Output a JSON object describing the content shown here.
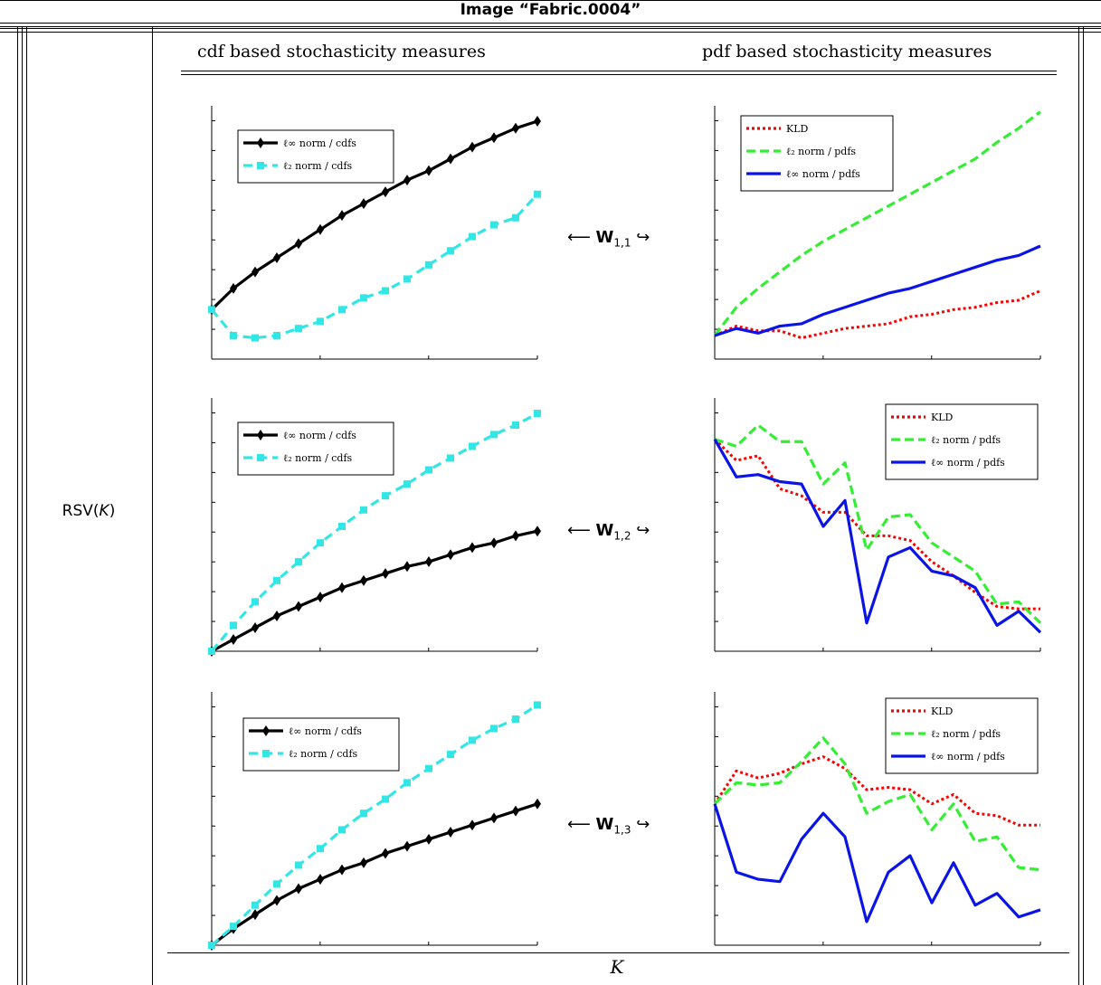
{
  "header": {
    "title": "Image “Fabric.0004”",
    "col_cdf": "cdf based stochasticity measures",
    "col_pdf": "pdf based stochasticity measures",
    "row_label": "RSV(K)",
    "row_label_plain": "RSV(",
    "row_label_var": "K",
    "row_label_close": ")",
    "x_label": "K"
  },
  "connectors": [
    {
      "prefix": "⟵",
      "symbol": "W",
      "sub": "1,1",
      "suffix": "↪"
    },
    {
      "prefix": "⟵",
      "symbol": "W",
      "sub": "1,2",
      "suffix": "↪"
    },
    {
      "prefix": "⟵",
      "symbol": "W",
      "sub": "1,3",
      "suffix": "↪"
    }
  ],
  "colors": {
    "linf_cdf": "#000000",
    "l2_cdf": "#33e6e6",
    "kld": "#ff0000",
    "l2_pdf": "#33ee33",
    "linf_pdf": "#0a14e6"
  },
  "chart_data": [
    {
      "type": "line",
      "id": "cdf-w11",
      "legend_position": "top-left",
      "x": [
        0,
        1,
        2,
        3,
        4,
        5,
        6,
        7,
        8,
        9,
        10,
        11,
        12,
        13,
        14,
        15
      ],
      "ylim": [
        0,
        1
      ],
      "series": [
        {
          "name": "ℓ∞ norm / cdfs",
          "style": "solid-diamond",
          "color_key": "linf_cdf",
          "values": [
            0.21,
            0.3,
            0.37,
            0.43,
            0.49,
            0.55,
            0.61,
            0.66,
            0.71,
            0.76,
            0.8,
            0.85,
            0.9,
            0.94,
            0.98,
            1.01
          ]
        },
        {
          "name": "ℓ₂ norm / cdfs",
          "style": "dashed-square",
          "color_key": "l2_cdf",
          "values": [
            0.21,
            0.1,
            0.09,
            0.1,
            0.13,
            0.16,
            0.21,
            0.26,
            0.29,
            0.34,
            0.4,
            0.46,
            0.52,
            0.57,
            0.6,
            0.7
          ]
        }
      ]
    },
    {
      "type": "line",
      "id": "pdf-w11",
      "legend_position": "top-left",
      "x": [
        0,
        1,
        2,
        3,
        4,
        5,
        6,
        7,
        8,
        9,
        10,
        11,
        12,
        13,
        14,
        15
      ],
      "ylim": [
        0,
        1
      ],
      "series": [
        {
          "name": "KLD",
          "style": "dotted",
          "color_key": "kld",
          "values": [
            0.1,
            0.14,
            0.12,
            0.12,
            0.09,
            0.11,
            0.13,
            0.14,
            0.15,
            0.18,
            0.19,
            0.21,
            0.22,
            0.24,
            0.25,
            0.29
          ]
        },
        {
          "name": "ℓ₂ norm / pdfs",
          "style": "dashed",
          "color_key": "l2_pdf",
          "values": [
            0.1,
            0.22,
            0.3,
            0.37,
            0.44,
            0.5,
            0.55,
            0.6,
            0.65,
            0.7,
            0.75,
            0.8,
            0.85,
            0.92,
            0.98,
            1.05
          ]
        },
        {
          "name": "ℓ∞ norm / pdfs",
          "style": "solid",
          "color_key": "linf_pdf",
          "values": [
            0.1,
            0.13,
            0.11,
            0.14,
            0.15,
            0.19,
            0.22,
            0.25,
            0.28,
            0.3,
            0.33,
            0.36,
            0.39,
            0.42,
            0.44,
            0.48
          ]
        }
      ]
    },
    {
      "type": "line",
      "id": "cdf-w12",
      "legend_position": "top-left",
      "x": [
        0,
        1,
        2,
        3,
        4,
        5,
        6,
        7,
        8,
        9,
        10,
        11,
        12,
        13,
        14,
        15
      ],
      "ylim": [
        0,
        1
      ],
      "series": [
        {
          "name": "ℓ∞ norm / cdfs",
          "style": "solid-diamond",
          "color_key": "linf_cdf",
          "values": [
            0.0,
            0.05,
            0.1,
            0.15,
            0.19,
            0.23,
            0.27,
            0.3,
            0.33,
            0.36,
            0.38,
            0.41,
            0.44,
            0.46,
            0.49,
            0.51
          ]
        },
        {
          "name": "ℓ₂ norm / cdfs",
          "style": "dashed-square",
          "color_key": "l2_cdf",
          "values": [
            0.0,
            0.11,
            0.21,
            0.3,
            0.38,
            0.46,
            0.53,
            0.6,
            0.66,
            0.71,
            0.77,
            0.82,
            0.87,
            0.92,
            0.96,
            1.01
          ]
        }
      ]
    },
    {
      "type": "line",
      "id": "pdf-w12",
      "legend_position": "top-right",
      "x": [
        0,
        1,
        2,
        3,
        4,
        5,
        6,
        7,
        8,
        9,
        10,
        11,
        12,
        13,
        14,
        15
      ],
      "ylim": [
        0,
        1
      ],
      "series": [
        {
          "name": "KLD",
          "style": "dotted",
          "color_key": "kld",
          "values": [
            0.9,
            0.81,
            0.83,
            0.69,
            0.66,
            0.59,
            0.59,
            0.49,
            0.49,
            0.47,
            0.38,
            0.32,
            0.25,
            0.19,
            0.18,
            0.18
          ]
        },
        {
          "name": "ℓ₂ norm / pdfs",
          "style": "dashed",
          "color_key": "l2_pdf",
          "values": [
            0.9,
            0.87,
            0.96,
            0.89,
            0.89,
            0.71,
            0.8,
            0.43,
            0.57,
            0.58,
            0.46,
            0.4,
            0.34,
            0.2,
            0.21,
            0.12
          ]
        },
        {
          "name": "ℓ∞ norm / pdfs",
          "style": "solid",
          "color_key": "linf_pdf",
          "values": [
            0.9,
            0.74,
            0.75,
            0.72,
            0.71,
            0.53,
            0.64,
            0.12,
            0.4,
            0.44,
            0.34,
            0.32,
            0.27,
            0.11,
            0.17,
            0.08
          ]
        }
      ]
    },
    {
      "type": "line",
      "id": "cdf-w13",
      "legend_position": "top-left",
      "x": [
        0,
        1,
        2,
        3,
        4,
        5,
        6,
        7,
        8,
        9,
        10,
        11,
        12,
        13,
        14,
        15
      ],
      "ylim": [
        0,
        1
      ],
      "series": [
        {
          "name": "ℓ∞ norm / cdfs",
          "style": "solid-diamond",
          "color_key": "linf_cdf",
          "values": [
            0.0,
            0.07,
            0.13,
            0.19,
            0.24,
            0.28,
            0.32,
            0.35,
            0.39,
            0.42,
            0.45,
            0.48,
            0.51,
            0.54,
            0.57,
            0.6
          ]
        },
        {
          "name": "ℓ₂ norm / cdfs",
          "style": "dashed-square",
          "color_key": "l2_cdf",
          "values": [
            0.0,
            0.08,
            0.17,
            0.26,
            0.34,
            0.41,
            0.49,
            0.56,
            0.62,
            0.69,
            0.75,
            0.81,
            0.87,
            0.92,
            0.96,
            1.02
          ]
        }
      ]
    },
    {
      "type": "line",
      "id": "pdf-w13",
      "legend_position": "top-right",
      "x": [
        0,
        1,
        2,
        3,
        4,
        5,
        6,
        7,
        8,
        9,
        10,
        11,
        12,
        13,
        14,
        15
      ],
      "ylim": [
        0,
        1
      ],
      "series": [
        {
          "name": "KLD",
          "style": "dotted",
          "color_key": "kld",
          "values": [
            0.6,
            0.74,
            0.71,
            0.73,
            0.77,
            0.8,
            0.75,
            0.66,
            0.67,
            0.66,
            0.6,
            0.64,
            0.56,
            0.55,
            0.51,
            0.51
          ]
        },
        {
          "name": "ℓ₂ norm / pdfs",
          "style": "dashed",
          "color_key": "l2_pdf",
          "values": [
            0.6,
            0.69,
            0.68,
            0.69,
            0.78,
            0.88,
            0.77,
            0.56,
            0.61,
            0.64,
            0.49,
            0.6,
            0.44,
            0.46,
            0.33,
            0.32
          ]
        },
        {
          "name": "ℓ∞ norm / pdfs",
          "style": "solid",
          "color_key": "linf_pdf",
          "values": [
            0.6,
            0.31,
            0.28,
            0.27,
            0.45,
            0.56,
            0.46,
            0.1,
            0.31,
            0.38,
            0.18,
            0.35,
            0.17,
            0.22,
            0.12,
            0.15
          ]
        }
      ]
    }
  ]
}
